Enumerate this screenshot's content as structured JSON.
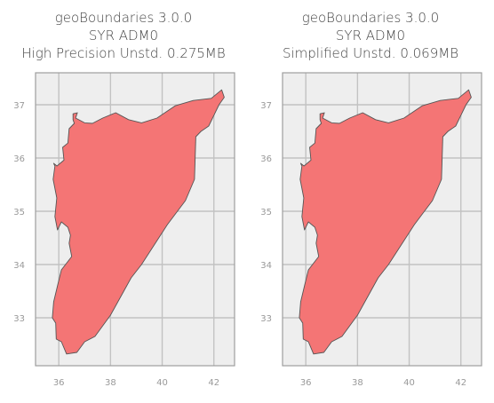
{
  "panels": [
    {
      "title_lines": [
        "geoBoundaries 3.0.0",
        "SYR ADM0",
        "High Precision Unstd. 0.275MB"
      ]
    },
    {
      "title_lines": [
        "geoBoundaries 3.0.0",
        "SYR ADM0",
        "Simplified Unstd. 0.069MB"
      ]
    }
  ],
  "map": {
    "x_ticks": [
      36,
      38,
      40,
      42
    ],
    "y_ticks": [
      33,
      34,
      35,
      36,
      37
    ],
    "x_range": [
      35.1,
      42.8
    ],
    "y_range": [
      32.1,
      37.6
    ],
    "grid": true,
    "background_color": "#eeeeee",
    "grid_color": "#c2c2c2",
    "frame_color": "#9e9e9e",
    "fill_color": "#f47575",
    "edge_color": "#555555",
    "tick_color": "#999999",
    "boundary_lonlat": [
      [
        35.8,
        35.9
      ],
      [
        35.93,
        35.85
      ],
      [
        36.2,
        35.96
      ],
      [
        36.15,
        36.2
      ],
      [
        36.35,
        36.28
      ],
      [
        36.4,
        36.55
      ],
      [
        36.6,
        36.65
      ],
      [
        36.55,
        36.72
      ],
      [
        36.55,
        36.83
      ],
      [
        36.72,
        36.85
      ],
      [
        36.65,
        36.75
      ],
      [
        37.0,
        36.66
      ],
      [
        37.3,
        36.65
      ],
      [
        37.7,
        36.75
      ],
      [
        38.2,
        36.85
      ],
      [
        38.7,
        36.72
      ],
      [
        39.2,
        36.66
      ],
      [
        39.8,
        36.75
      ],
      [
        40.5,
        36.98
      ],
      [
        41.2,
        37.08
      ],
      [
        41.9,
        37.12
      ],
      [
        42.3,
        37.28
      ],
      [
        42.4,
        37.14
      ],
      [
        42.2,
        37.0
      ],
      [
        41.8,
        36.6
      ],
      [
        41.5,
        36.5
      ],
      [
        41.3,
        36.4
      ],
      [
        41.25,
        35.6
      ],
      [
        40.9,
        35.2
      ],
      [
        40.2,
        34.75
      ],
      [
        39.2,
        34.0
      ],
      [
        38.8,
        33.75
      ],
      [
        38.0,
        33.05
      ],
      [
        37.4,
        32.65
      ],
      [
        37.0,
        32.55
      ],
      [
        36.7,
        32.35
      ],
      [
        36.3,
        32.32
      ],
      [
        36.1,
        32.55
      ],
      [
        35.9,
        32.6
      ],
      [
        35.88,
        32.9
      ],
      [
        35.75,
        33.0
      ],
      [
        35.8,
        33.3
      ],
      [
        35.95,
        33.6
      ],
      [
        36.1,
        33.9
      ],
      [
        36.5,
        34.15
      ],
      [
        36.4,
        34.4
      ],
      [
        36.45,
        34.55
      ],
      [
        36.35,
        34.7
      ],
      [
        36.1,
        34.8
      ],
      [
        35.95,
        34.65
      ],
      [
        35.85,
        34.9
      ],
      [
        35.92,
        35.25
      ],
      [
        35.78,
        35.6
      ],
      [
        35.85,
        35.85
      ],
      [
        35.8,
        35.9
      ]
    ]
  }
}
